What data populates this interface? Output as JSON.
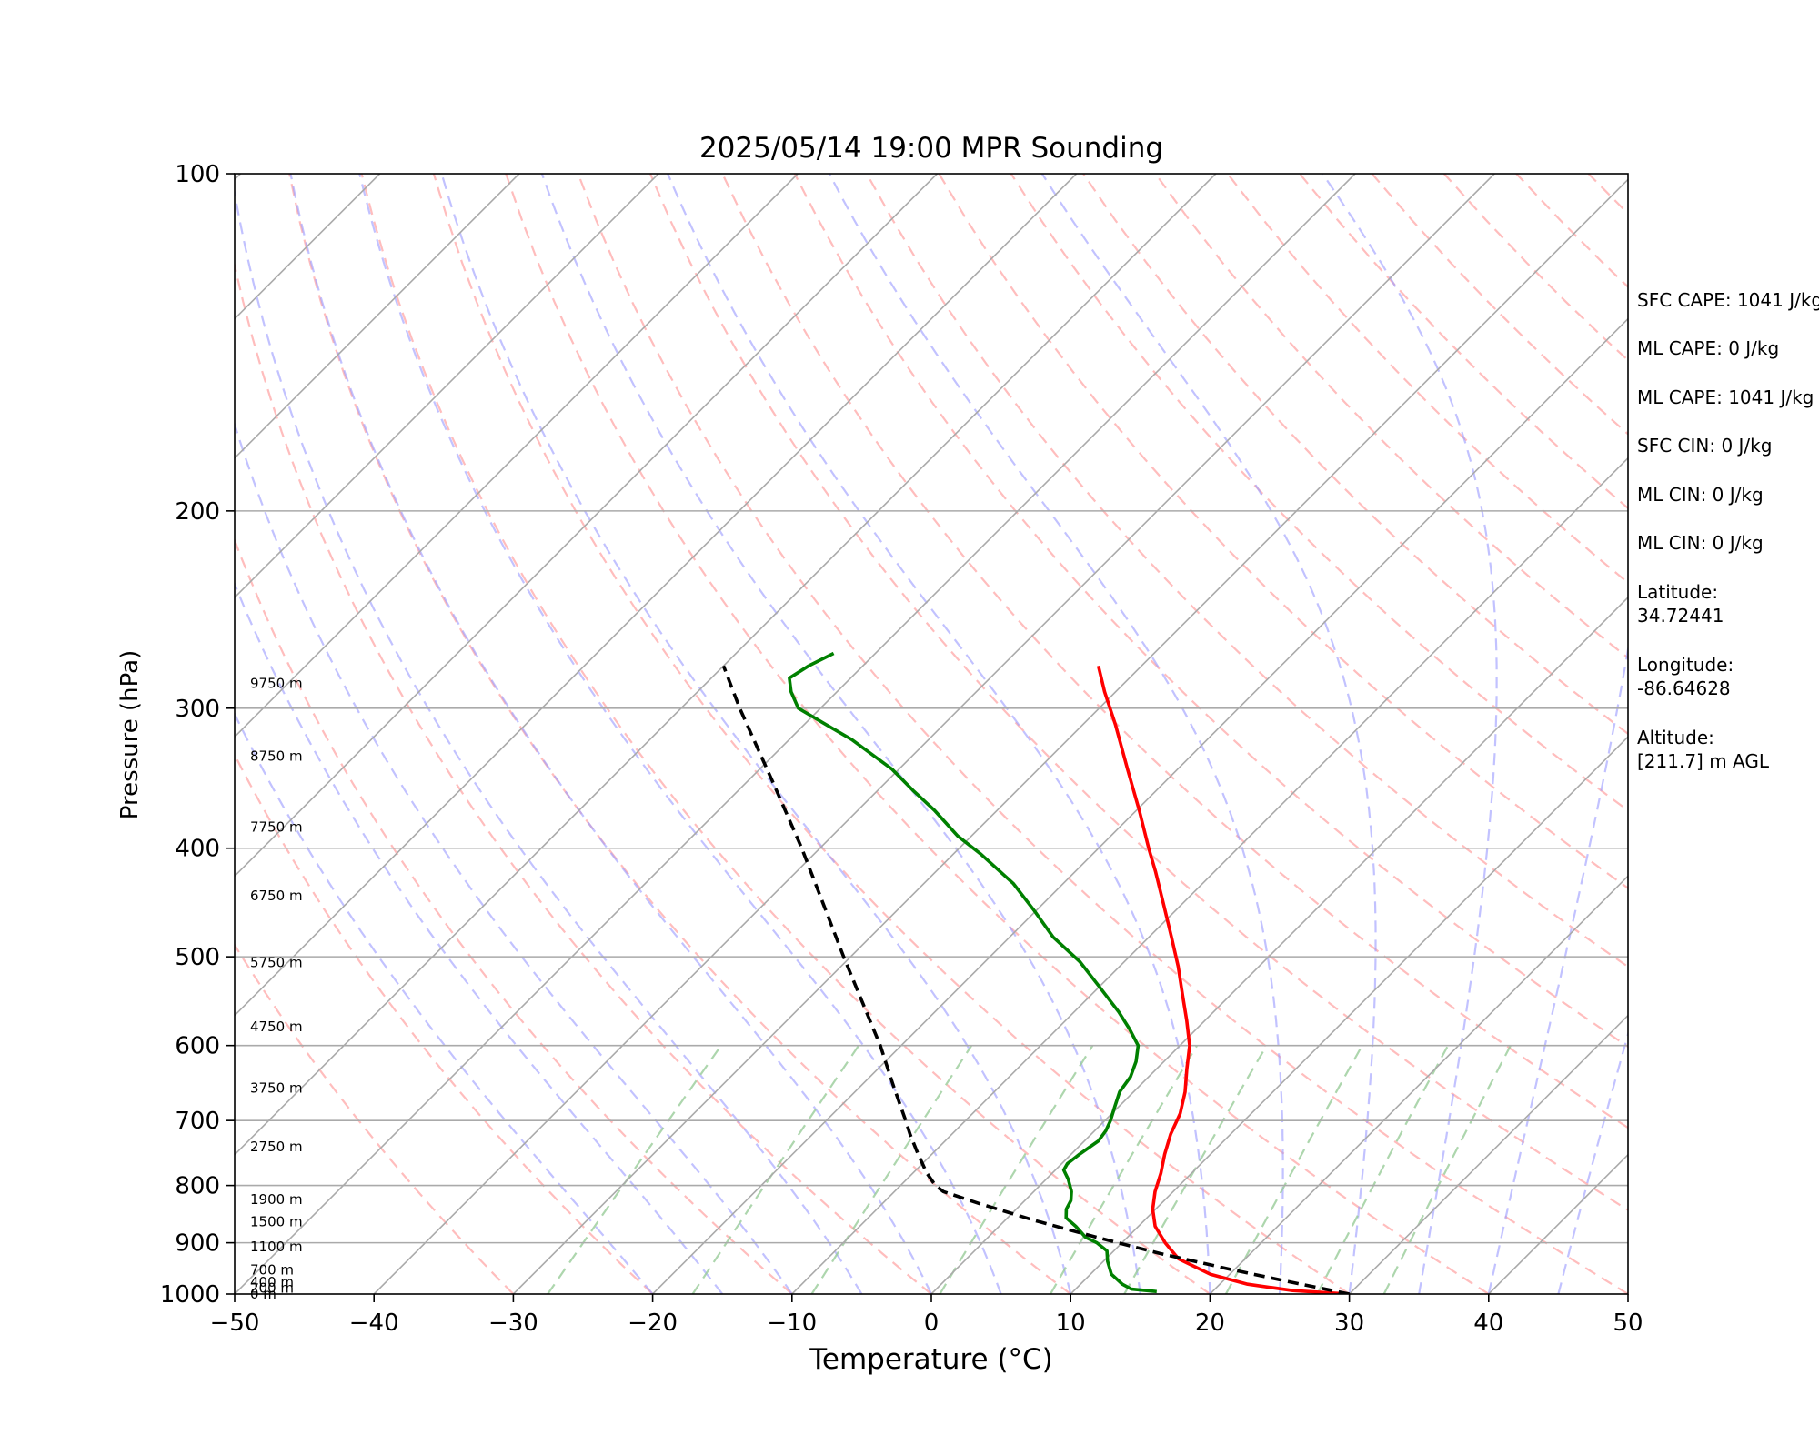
{
  "chart_data": {
    "type": "line",
    "title": "2025/05/14 19:00 MPR Sounding",
    "xlabel": "Temperature (°C)",
    "ylabel": "Pressure (hPa)",
    "xlim": [
      -50,
      50
    ],
    "ylim": [
      1000,
      100
    ],
    "y_scale": "log",
    "skew": "skew-T (isotherms slanted)",
    "x_ticks": [
      "−50",
      "−40",
      "−30",
      "−20",
      "−10",
      "0",
      "10",
      "20",
      "30",
      "40",
      "50"
    ],
    "y_ticks": [
      "1000",
      "900",
      "800",
      "700",
      "600",
      "500",
      "400",
      "300",
      "200",
      "100"
    ],
    "height_labels": [
      {
        "p": 1000,
        "text": "0 m"
      },
      {
        "p": 988,
        "text": "200 m"
      },
      {
        "p": 976,
        "text": "400 m"
      },
      {
        "p": 952,
        "text": "700 m"
      },
      {
        "p": 907,
        "text": "1100 m"
      },
      {
        "p": 862,
        "text": "1500 m"
      },
      {
        "p": 823,
        "text": "1900 m"
      },
      {
        "p": 739,
        "text": "2750 m"
      },
      {
        "p": 655,
        "text": "3750 m"
      },
      {
        "p": 577,
        "text": "4750 m"
      },
      {
        "p": 506,
        "text": "5750 m"
      },
      {
        "p": 441,
        "text": "6750 m"
      },
      {
        "p": 383,
        "text": "7750 m"
      },
      {
        "p": 331,
        "text": "8750 m"
      },
      {
        "p": 285,
        "text": "9750 m"
      }
    ],
    "series": [
      {
        "color": "#ff0000",
        "points": [
          [
            1000,
            30.0
          ],
          [
            993,
            25.7
          ],
          [
            980,
            22.0
          ],
          [
            960,
            18.6
          ],
          [
            930,
            15.2
          ],
          [
            900,
            13.1
          ],
          [
            870,
            11.2
          ],
          [
            840,
            9.8
          ],
          [
            810,
            8.7
          ],
          [
            780,
            7.8
          ],
          [
            750,
            6.7
          ],
          [
            720,
            5.7
          ],
          [
            690,
            4.9
          ],
          [
            660,
            3.7
          ],
          [
            630,
            2.2
          ],
          [
            600,
            0.7
          ],
          [
            570,
            -1.3
          ],
          [
            540,
            -3.5
          ],
          [
            510,
            -5.8
          ],
          [
            480,
            -8.4
          ],
          [
            450,
            -11.2
          ],
          [
            420,
            -14.2
          ],
          [
            400,
            -16.4
          ],
          [
            370,
            -19.8
          ],
          [
            340,
            -23.6
          ],
          [
            310,
            -27.7
          ],
          [
            290,
            -30.8
          ],
          [
            275,
            -33.1
          ]
        ]
      },
      {
        "color": "#008000",
        "points": [
          [
            995,
            16.0
          ],
          [
            990,
            14.0
          ],
          [
            980,
            13.0
          ],
          [
            960,
            11.5
          ],
          [
            935,
            10.3
          ],
          [
            915,
            9.5
          ],
          [
            900,
            8.2
          ],
          [
            890,
            7.0
          ],
          [
            870,
            5.5
          ],
          [
            855,
            4.2
          ],
          [
            840,
            3.6
          ],
          [
            825,
            3.3
          ],
          [
            810,
            2.7
          ],
          [
            790,
            1.6
          ],
          [
            775,
            0.6
          ],
          [
            765,
            0.4
          ],
          [
            750,
            0.6
          ],
          [
            730,
            1.0
          ],
          [
            715,
            0.8
          ],
          [
            700,
            0.4
          ],
          [
            680,
            -0.3
          ],
          [
            660,
            -1.0
          ],
          [
            640,
            -1.3
          ],
          [
            620,
            -2.0
          ],
          [
            600,
            -3.0
          ],
          [
            580,
            -4.8
          ],
          [
            560,
            -6.8
          ],
          [
            530,
            -10.2
          ],
          [
            505,
            -13.2
          ],
          [
            480,
            -16.9
          ],
          [
            455,
            -20.1
          ],
          [
            430,
            -23.6
          ],
          [
            405,
            -28.0
          ],
          [
            390,
            -31.0
          ],
          [
            370,
            -34.5
          ],
          [
            355,
            -37.5
          ],
          [
            340,
            -40.5
          ],
          [
            320,
            -45.5
          ],
          [
            310,
            -48.5
          ],
          [
            300,
            -51.6
          ],
          [
            290,
            -53.3
          ],
          [
            282,
            -54.4
          ],
          [
            275,
            -53.9
          ],
          [
            268,
            -53.0
          ]
        ]
      },
      {
        "color": "#000000",
        "dashed": true,
        "points": [
          [
            1000,
            30.0
          ],
          [
            975,
            24.8
          ],
          [
            950,
            19.6
          ],
          [
            920,
            13.5
          ],
          [
            890,
            7.8
          ],
          [
            860,
            2.2
          ],
          [
            830,
            -3.1
          ],
          [
            810,
            -6.5
          ],
          [
            800,
            -7.5
          ],
          [
            780,
            -9.0
          ],
          [
            750,
            -11.0
          ],
          [
            720,
            -13.0
          ],
          [
            700,
            -14.3
          ],
          [
            650,
            -17.8
          ],
          [
            600,
            -21.5
          ],
          [
            550,
            -25.8
          ],
          [
            500,
            -30.5
          ],
          [
            450,
            -35.6
          ],
          [
            400,
            -41.3
          ],
          [
            350,
            -48.0
          ],
          [
            300,
            -55.8
          ],
          [
            275,
            -60.0
          ]
        ]
      }
    ]
  },
  "info": {
    "sfc_cape": "SFC CAPE: 1041 J/kg",
    "ml_cape_1": "ML CAPE: 0 J/kg",
    "ml_cape_2": "ML CAPE: 1041 J/kg",
    "sfc_cin": "SFC CIN: 0 J/kg",
    "ml_cin_1": "ML CIN: 0 J/kg",
    "ml_cin_2": "ML CIN: 0 J/kg",
    "latitude_label": "Latitude:",
    "latitude_value": "34.72441",
    "longitude_label": "Longitude:",
    "longitude_value": "-86.64628",
    "altitude_label": "Altitude:",
    "altitude_value": "[211.7] m AGL"
  },
  "colors": {
    "temperature": "#ff0000",
    "dewpoint": "#008000",
    "parcel": "#000000",
    "dry_adiabat": "#ff9999",
    "moist_adiabat": "#9999ff",
    "mixing_ratio": "#99cc99",
    "isotherm": "#aaaaaa"
  }
}
